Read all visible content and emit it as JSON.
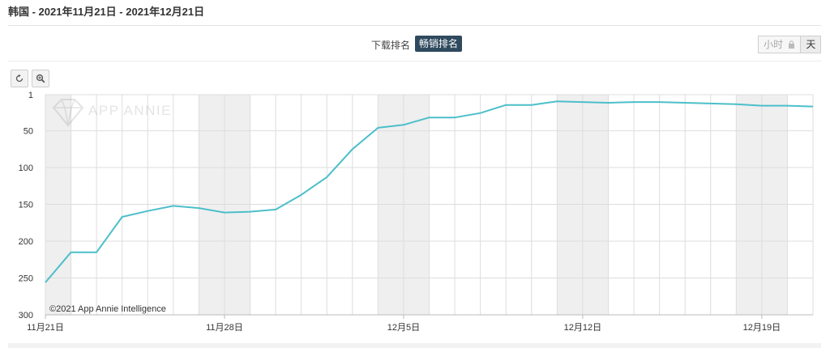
{
  "header": {
    "title": "韩国 - 2021年11月21日 - 2021年12月21日"
  },
  "metric_toggle": {
    "download_label": "下载排名",
    "grossing_label": "畅销排名",
    "active": "grossing"
  },
  "granularity": {
    "hour_label": "小时",
    "day_label": "天",
    "active": "day",
    "hour_locked_icon": "lock-icon"
  },
  "toolbar": {
    "reset_icon": "reset-zoom-icon",
    "zoom_icon": "zoom-icon"
  },
  "watermark": {
    "logo_icon": "app-annie-logo-icon",
    "text": "APP ANNIE"
  },
  "credits": "©2021 App Annie Intelligence",
  "colors": {
    "series": "#4cbfca",
    "weekend_band": "#efefef",
    "active_toggle": "#2f4a5e"
  },
  "chart_data": {
    "type": "line",
    "title": "",
    "xlabel": "",
    "ylabel": "",
    "y_reversed": true,
    "ylim": [
      1,
      300
    ],
    "y_ticks": [
      1,
      50,
      100,
      150,
      200,
      250,
      300
    ],
    "x_range": [
      "2021-11-21",
      "2021-12-21"
    ],
    "x_tick_labels": [
      "11月21日",
      "11月28日",
      "12月5日",
      "12月12日",
      "12月19日"
    ],
    "x_tick_dates": [
      "2021-11-21",
      "2021-11-28",
      "2021-12-05",
      "2021-12-12",
      "2021-12-19"
    ],
    "grid": true,
    "legend": "none",
    "weekend_bands": [
      [
        "2021-11-21",
        "2021-11-22"
      ],
      [
        "2021-11-27",
        "2021-11-29"
      ],
      [
        "2021-12-04",
        "2021-12-06"
      ],
      [
        "2021-12-11",
        "2021-12-13"
      ],
      [
        "2021-12-18",
        "2021-12-20"
      ]
    ],
    "series": [
      {
        "name": "",
        "color": "#4cbfca",
        "points": [
          [
            "2021-11-21",
            256
          ],
          [
            "2021-11-22",
            215
          ],
          [
            "2021-11-23",
            215
          ],
          [
            "2021-11-24",
            167
          ],
          [
            "2021-11-25",
            159
          ],
          [
            "2021-11-26",
            152
          ],
          [
            "2021-11-27",
            155
          ],
          [
            "2021-11-28",
            161
          ],
          [
            "2021-11-29",
            160
          ],
          [
            "2021-11-30",
            157
          ],
          [
            "2021-12-01",
            137
          ],
          [
            "2021-12-02",
            113
          ],
          [
            "2021-12-03",
            75
          ],
          [
            "2021-12-04",
            46
          ],
          [
            "2021-12-05",
            42
          ],
          [
            "2021-12-06",
            32
          ],
          [
            "2021-12-07",
            32
          ],
          [
            "2021-12-08",
            26
          ],
          [
            "2021-12-09",
            15
          ],
          [
            "2021-12-10",
            15
          ],
          [
            "2021-12-11",
            10
          ],
          [
            "2021-12-12",
            11
          ],
          [
            "2021-12-13",
            12
          ],
          [
            "2021-12-14",
            11
          ],
          [
            "2021-12-15",
            11
          ],
          [
            "2021-12-16",
            12
          ],
          [
            "2021-12-17",
            13
          ],
          [
            "2021-12-18",
            14
          ],
          [
            "2021-12-19",
            16
          ],
          [
            "2021-12-20",
            16
          ],
          [
            "2021-12-21",
            17
          ]
        ]
      }
    ]
  }
}
